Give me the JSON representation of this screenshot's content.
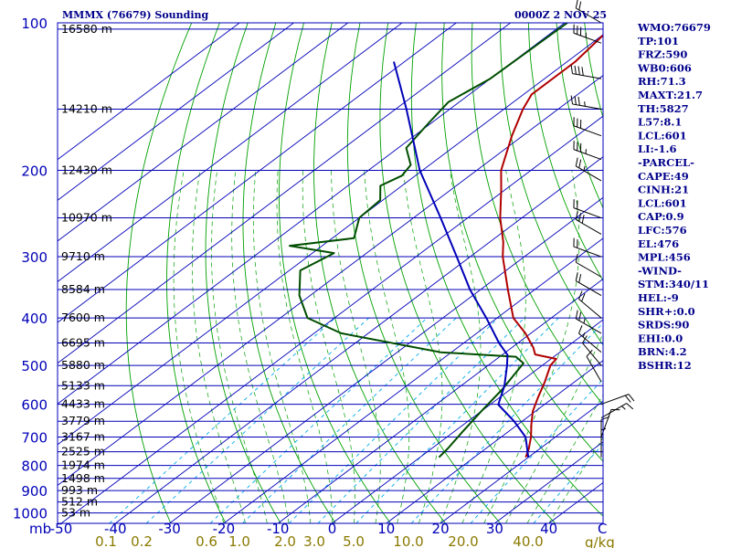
{
  "header": {
    "station": "MMMX (76679) Sounding",
    "time": "0000Z  2 NOV 25"
  },
  "chart_data": {
    "type": "line",
    "title": "MMMX (76679) Sounding",
    "subtitle": "0000Z  2 NOV 25",
    "xlabel": "",
    "ylabel": "",
    "pressure_axis_unit": "mb",
    "pressure_ticks": [
      100,
      200,
      300,
      400,
      500,
      600,
      700,
      800,
      900,
      1000
    ],
    "pressure_tick_labels": [
      "100",
      "200",
      "300",
      "400",
      "500",
      "600",
      "700",
      "800",
      "900",
      "1000"
    ],
    "temperature_ticks": [
      -50,
      -40,
      -30,
      -20,
      -10,
      0,
      10,
      20,
      30,
      40
    ],
    "temperature_tick_labels": [
      "-50",
      "-40",
      "-30",
      "-20",
      "-10",
      "0",
      "10",
      "20",
      "30",
      "40"
    ],
    "temperature_unit": "C",
    "mixing_ratio_ticks": [
      0.1,
      0.2,
      0.6,
      1.0,
      2.0,
      3.0,
      5.0,
      10.0,
      20.0,
      40.0
    ],
    "mixing_ratio_tick_labels": [
      "0.1",
      "0.2",
      "0.6",
      "1.0",
      "2.0",
      "3.0",
      "5.0",
      "10.0",
      "20.0",
      "40.0"
    ],
    "mixing_ratio_unit": "g/kg",
    "height_levels": [
      {
        "p": 103,
        "label": "16580 m"
      },
      {
        "p": 150,
        "label": "14210 m"
      },
      {
        "p": 200,
        "label": "12430 m"
      },
      {
        "p": 250,
        "label": "10970 m"
      },
      {
        "p": 300,
        "label": "9710 m"
      },
      {
        "p": 350,
        "label": "8584 m"
      },
      {
        "p": 400,
        "label": "7600 m"
      },
      {
        "p": 450,
        "label": "6695 m"
      },
      {
        "p": 500,
        "label": "5880 m"
      },
      {
        "p": 550,
        "label": "5133 m"
      },
      {
        "p": 600,
        "label": "4433 m"
      },
      {
        "p": 650,
        "label": "3779 m"
      },
      {
        "p": 700,
        "label": "3167 m"
      },
      {
        "p": 750,
        "label": "2525 m"
      },
      {
        "p": 800,
        "label": "1974 m"
      },
      {
        "p": 850,
        "label": "1498 m"
      },
      {
        "p": 900,
        "label": "993 m"
      },
      {
        "p": 950,
        "label": "512 m"
      },
      {
        "p": 1000,
        "label": "53 m"
      }
    ],
    "series": [
      {
        "name": "",
        "kind": "temperature",
        "color": "#b00000",
        "points": [
          {
            "p": 100,
            "t": -70.5
          },
          {
            "p": 120,
            "t": -68.5
          },
          {
            "p": 140,
            "t": -68.5
          },
          {
            "p": 150,
            "t": -66.5
          },
          {
            "p": 170,
            "t": -62.0
          },
          {
            "p": 200,
            "t": -55.5
          },
          {
            "p": 220,
            "t": -50.5
          },
          {
            "p": 250,
            "t": -44.0
          },
          {
            "p": 280,
            "t": -37.5
          },
          {
            "p": 300,
            "t": -34.0
          },
          {
            "p": 350,
            "t": -25.0
          },
          {
            "p": 400,
            "t": -17.0
          },
          {
            "p": 430,
            "t": -11.0
          },
          {
            "p": 460,
            "t": -6.0
          },
          {
            "p": 475,
            "t": -4.0
          },
          {
            "p": 485,
            "t": 1.0
          },
          {
            "p": 500,
            "t": 1.5
          },
          {
            "p": 540,
            "t": 4.5
          },
          {
            "p": 580,
            "t": 7.0
          },
          {
            "p": 620,
            "t": 9.5
          },
          {
            "p": 660,
            "t": 12.5
          },
          {
            "p": 700,
            "t": 15.5
          },
          {
            "p": 740,
            "t": 18.0
          },
          {
            "p": 770,
            "t": 19.5
          }
        ]
      },
      {
        "name": "",
        "kind": "dewpoint",
        "color": "#004d00",
        "points": [
          {
            "p": 100,
            "t": -79.5
          },
          {
            "p": 130,
            "t": -80.0
          },
          {
            "p": 145,
            "t": -82.0
          },
          {
            "p": 160,
            "t": -80.5
          },
          {
            "p": 180,
            "t": -78.5
          },
          {
            "p": 195,
            "t": -73.5
          },
          {
            "p": 205,
            "t": -72.5
          },
          {
            "p": 215,
            "t": -74.0
          },
          {
            "p": 230,
            "t": -70.5
          },
          {
            "p": 250,
            "t": -70.0
          },
          {
            "p": 275,
            "t": -66.0
          },
          {
            "p": 285,
            "t": -76.0
          },
          {
            "p": 295,
            "t": -66.0
          },
          {
            "p": 320,
            "t": -68.0
          },
          {
            "p": 360,
            "t": -62.0
          },
          {
            "p": 400,
            "t": -55.0
          },
          {
            "p": 430,
            "t": -45.0
          },
          {
            "p": 470,
            "t": -22.0
          },
          {
            "p": 480,
            "t": -7.0
          },
          {
            "p": 495,
            "t": -4.0
          },
          {
            "p": 520,
            "t": -3.0
          },
          {
            "p": 560,
            "t": -1.5
          },
          {
            "p": 620,
            "t": 0.0
          },
          {
            "p": 680,
            "t": 1.5
          },
          {
            "p": 740,
            "t": 3.0
          },
          {
            "p": 770,
            "t": 3.5
          }
        ]
      },
      {
        "name": "",
        "kind": "parcel",
        "color": "#0000b8",
        "points": [
          {
            "p": 120,
            "t": -102.0
          },
          {
            "p": 150,
            "t": -88.0
          },
          {
            "p": 200,
            "t": -70.5
          },
          {
            "p": 250,
            "t": -55.0
          },
          {
            "p": 300,
            "t": -42.5
          },
          {
            "p": 350,
            "t": -32.0
          },
          {
            "p": 400,
            "t": -22.0
          },
          {
            "p": 450,
            "t": -13.5
          },
          {
            "p": 476,
            "t": -9.0
          },
          {
            "p": 500,
            "t": -6.5
          },
          {
            "p": 550,
            "t": -2.0
          },
          {
            "p": 601,
            "t": 1.5
          },
          {
            "p": 650,
            "t": 8.5
          },
          {
            "p": 700,
            "t": 14.5
          },
          {
            "p": 770,
            "t": 20.0
          }
        ]
      }
    ],
    "wind_barbs": [
      {
        "p": 100,
        "dir": 300,
        "kt": 20
      },
      {
        "p": 110,
        "dir": 290,
        "kt": 35
      },
      {
        "p": 130,
        "dir": 280,
        "kt": 40
      },
      {
        "p": 150,
        "dir": 280,
        "kt": 35
      },
      {
        "p": 170,
        "dir": 290,
        "kt": 30
      },
      {
        "p": 190,
        "dir": 290,
        "kt": 35
      },
      {
        "p": 210,
        "dir": 300,
        "kt": 25
      },
      {
        "p": 250,
        "dir": 290,
        "kt": 20
      },
      {
        "p": 270,
        "dir": 300,
        "kt": 30
      },
      {
        "p": 300,
        "dir": 290,
        "kt": 20
      },
      {
        "p": 330,
        "dir": 300,
        "kt": 10
      },
      {
        "p": 360,
        "dir": 300,
        "kt": 20
      },
      {
        "p": 400,
        "dir": 310,
        "kt": 20
      },
      {
        "p": 430,
        "dir": 300,
        "kt": 25
      },
      {
        "p": 470,
        "dir": 310,
        "kt": 15
      },
      {
        "p": 500,
        "dir": 320,
        "kt": 10
      },
      {
        "p": 540,
        "dir": 330,
        "kt": 10
      },
      {
        "p": 600,
        "dir": 70,
        "kt": 20
      },
      {
        "p": 640,
        "dir": 60,
        "kt": 15
      },
      {
        "p": 700,
        "dir": 20,
        "kt": 10
      },
      {
        "p": 740,
        "dir": 360,
        "kt": 10
      },
      {
        "p": 770,
        "dir": 0,
        "kt": 5
      }
    ]
  },
  "indices": [
    "WMO:76679",
    "TP:101",
    "FRZ:590",
    "WB0:606",
    "RH:71.3",
    "MAXT:21.7",
    "TH:5827",
    "L57:8.1",
    "LCL:601",
    "LI:-1.6",
    "-PARCEL-",
    "CAPE:49",
    "CINH:21",
    "LCL:601",
    "CAP:0.9",
    "LFC:576",
    "EL:476",
    "MPL:456",
    "-WIND-",
    "STM:340/11",
    "HEL:-9",
    "SHR+:0.0",
    "SRDS:90",
    "EHI:0.0",
    "BRN:4.2",
    "BSHR:12"
  ],
  "colors": {
    "frame": "#0000b8",
    "isobar": "#0000b8",
    "isotherm": "#0000b8",
    "dry_adiabat": "#00a000",
    "moist_adiabat": "#00a000",
    "mixing_ratio": "#00aaee",
    "height_guides": "#808080",
    "barbs": "#000000"
  }
}
